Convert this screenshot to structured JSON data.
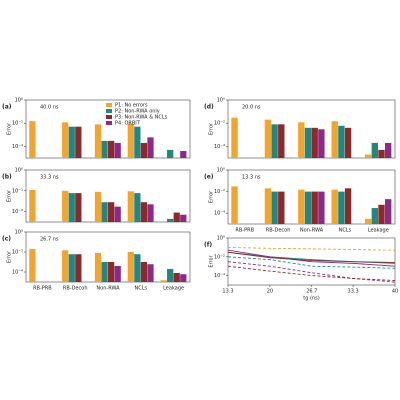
{
  "chart_data": [
    {
      "type": "bar",
      "panel_label": "(a)",
      "annotation": "40.0 ns",
      "ylabel": "Error",
      "log": true,
      "ylim": [
        1e-05,
        1
      ],
      "yticks": [
        {
          "value": 1,
          "label": "10⁰"
        },
        {
          "value": 0.01,
          "label": "10⁻²"
        },
        {
          "value": 0.0001,
          "label": "10⁻⁴"
        }
      ],
      "series": [
        {
          "name": "P1: No errors",
          "color": "#f2a431",
          "values": [
            0.015,
            0.012,
            0.008,
            0.009,
            null
          ]
        },
        {
          "name": "P2: Non-RWA only",
          "color": "#23877f",
          "values": [
            null,
            0.005,
            0.0003,
            0.005,
            5e-05
          ]
        },
        {
          "name": "P3: Non-RWA & NCLs",
          "color": "#8a2a2a",
          "values": [
            null,
            0.005,
            0.0003,
            0.0002,
            null
          ]
        },
        {
          "name": "P4: ORBIT",
          "color": "#8e2a86",
          "values": [
            null,
            null,
            0.0002,
            0.0006,
            4e-05
          ]
        }
      ]
    },
    {
      "type": "bar",
      "panel_label": "(b)",
      "annotation": "33.3 ns",
      "ylabel": "Error",
      "log": true,
      "ylim": [
        1e-05,
        1
      ],
      "yticks": [
        {
          "value": 1,
          "label": "10⁰"
        },
        {
          "value": 0.01,
          "label": "10⁻²"
        },
        {
          "value": 0.0001,
          "label": "10⁻⁴"
        }
      ],
      "series": [
        {
          "color": "#f2a431",
          "values": [
            0.012,
            0.01,
            0.008,
            0.009,
            null
          ]
        },
        {
          "color": "#23877f",
          "values": [
            null,
            0.006,
            0.0008,
            0.006,
            2e-05
          ]
        },
        {
          "color": "#8a2a2a",
          "values": [
            null,
            0.006,
            0.0008,
            0.0008,
            8e-05
          ]
        },
        {
          "color": "#8e2a86",
          "values": [
            null,
            null,
            0.0003,
            0.0005,
            5e-05
          ]
        }
      ]
    },
    {
      "type": "bar",
      "panel_label": "(c)",
      "annotation": "26.7 ns",
      "ylabel": "Error",
      "log": true,
      "categories": [
        "RB-PRB",
        "RB-Decoh",
        "Non-RWA",
        "NCLs",
        "Leakage"
      ],
      "ylim": [
        1e-05,
        1
      ],
      "yticks": [
        {
          "value": 1,
          "label": "10⁰"
        },
        {
          "value": 0.01,
          "label": "10⁻²"
        },
        {
          "value": 0.0001,
          "label": "10⁻⁴"
        }
      ],
      "series": [
        {
          "color": "#f2a431",
          "values": [
            0.02,
            0.015,
            0.008,
            0.01,
            1.5e-05
          ]
        },
        {
          "color": "#23877f",
          "values": [
            null,
            0.006,
            0.001,
            0.006,
            0.0002
          ]
        },
        {
          "color": "#8a2a2a",
          "values": [
            null,
            0.006,
            0.001,
            0.001,
            8e-05
          ]
        },
        {
          "color": "#8e2a86",
          "values": [
            null,
            null,
            0.0004,
            0.0006,
            6e-05
          ]
        }
      ]
    },
    {
      "type": "bar",
      "panel_label": "(d)",
      "annotation": "20.0 ns",
      "ylabel": "Error",
      "log": true,
      "ylim": [
        1e-05,
        1
      ],
      "yticks": [
        {
          "value": 1,
          "label": "10⁰"
        },
        {
          "value": 0.01,
          "label": "10⁻²"
        },
        {
          "value": 0.0001,
          "label": "10⁻⁴"
        }
      ],
      "series": [
        {
          "color": "#f2a431",
          "values": [
            0.03,
            0.02,
            0.012,
            0.015,
            2e-05
          ]
        },
        {
          "color": "#23877f",
          "values": [
            null,
            0.008,
            0.004,
            0.006,
            0.0002
          ]
        },
        {
          "color": "#8a2a2a",
          "values": [
            null,
            0.008,
            0.004,
            0.004,
            5e-05
          ]
        },
        {
          "color": "#8e2a86",
          "values": [
            null,
            null,
            0.003,
            null,
            0.0002
          ]
        }
      ]
    },
    {
      "type": "bar",
      "panel_label": "(e)",
      "annotation": "13.3 ns",
      "ylabel": "Error",
      "log": true,
      "categories": [
        "RB-PRB",
        "RB-Decoh",
        "Non-RWA",
        "NCLs",
        "Leakage"
      ],
      "ylim": [
        1e-05,
        1
      ],
      "yticks": [
        {
          "value": 1,
          "label": "10⁰"
        },
        {
          "value": 0.01,
          "label": "10⁻²"
        },
        {
          "value": 0.0001,
          "label": "10⁻⁴"
        }
      ],
      "series": [
        {
          "color": "#f2a431",
          "values": [
            0.03,
            0.02,
            0.015,
            0.015,
            3e-05
          ]
        },
        {
          "color": "#23877f",
          "values": [
            null,
            0.01,
            0.01,
            0.01,
            0.0003
          ]
        },
        {
          "color": "#8a2a2a",
          "values": [
            null,
            0.01,
            0.01,
            0.02,
            0.0006
          ]
        },
        {
          "color": "#8e2a86",
          "values": [
            null,
            null,
            0.01,
            null,
            0.002
          ]
        }
      ]
    },
    {
      "type": "line",
      "panel_label": "(f)",
      "ylabel": "Error",
      "xlabel": "tg (ns)",
      "log": true,
      "x": [
        13.3,
        20,
        26.7,
        33.3,
        40
      ],
      "xlim": [
        13.3,
        40
      ],
      "xticks": [
        13.3,
        20,
        26.7,
        33.3,
        40
      ],
      "ylim": [
        1e-05,
        1
      ],
      "yticks": [
        {
          "value": 1,
          "label": "10⁰"
        },
        {
          "value": 0.01,
          "label": "10⁻²"
        },
        {
          "value": 0.0001,
          "label": "10⁻⁴"
        }
      ],
      "series": [
        {
          "color": "#f2a431",
          "dashed": true,
          "values": [
            0.1,
            0.08,
            0.07,
            0.06,
            0.05
          ]
        },
        {
          "color": "#23877f",
          "dashed": false,
          "values": [
            0.03,
            0.01,
            0.005,
            0.003,
            0.002
          ]
        },
        {
          "color": "#8e2a86",
          "dashed": false,
          "values": [
            0.05,
            0.01,
            0.003,
            0.002,
            0.001
          ]
        },
        {
          "color": "#8a2a2a",
          "dashed": false,
          "values": [
            0.03,
            0.008,
            0.004,
            0.003,
            0.0025
          ]
        },
        {
          "color": "#23877f",
          "dashed": true,
          "values": [
            0.01,
            0.005,
            0.001,
            0.0008,
            0.0006
          ]
        },
        {
          "color": "#8e2a86",
          "dashed": true,
          "values": [
            0.003,
            0.001,
            0.0002,
            5e-05,
            2e-05
          ]
        },
        {
          "color": "#8a2a2a",
          "dashed": true,
          "values": [
            0.001,
            0.0003,
            0.0001,
            5e-05,
            3e-05
          ]
        }
      ]
    }
  ]
}
